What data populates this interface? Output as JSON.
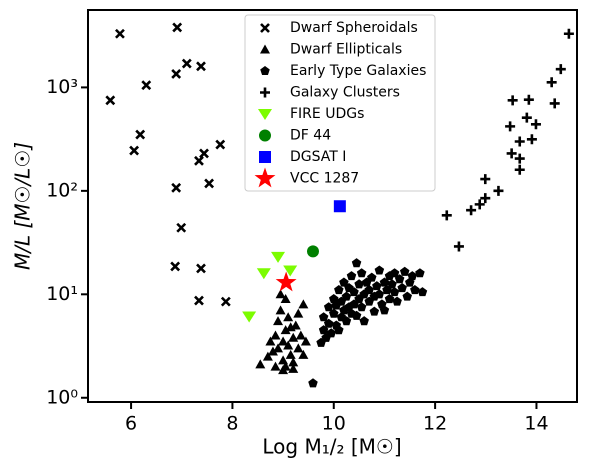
{
  "chart_data": {
    "type": "scatter",
    "x_label": "Log M₁/₂ [M☉]",
    "y_label": "M/L [M☉/L☉]",
    "xlim": [
      5.15,
      14.8
    ],
    "xticks": [
      6,
      8,
      10,
      12,
      14
    ],
    "ylim": [
      0.91,
      5600
    ],
    "y_scale": "log",
    "yticks": [
      {
        "value": 1,
        "label": "10⁰"
      },
      {
        "value": 10,
        "label": "10¹"
      },
      {
        "value": 100,
        "label": "10²"
      },
      {
        "value": 1000,
        "label": "10³"
      }
    ],
    "legend": "upper center",
    "series": [
      {
        "name": "Dwarf Spheroidals",
        "color": "#000000",
        "marker": "x",
        "x": [
          5.78,
          6.91,
          5.59,
          6.3,
          7.1,
          7.38,
          6.89,
          6.18,
          6.06,
          7.76,
          7.44,
          7.34,
          7.54,
          6.89,
          6.99,
          6.87,
          7.38,
          7.34,
          7.87
        ],
        "values": [
          3300,
          3800,
          750,
          1050,
          1700,
          1600,
          1350,
          350,
          245,
          280,
          230,
          195,
          118,
          107,
          44,
          18.6,
          17.8,
          8.7,
          8.5
        ]
      },
      {
        "name": "Dwarf Ellipticals",
        "color": "#000000",
        "marker": "^",
        "x": [
          8.55,
          8.7,
          8.75,
          8.8,
          8.85,
          8.9,
          8.9,
          8.95,
          9.0,
          9.0,
          9.05,
          9.05,
          9.1,
          9.1,
          9.15,
          9.15,
          9.2,
          9.2,
          9.25,
          9.3,
          9.3,
          9.35,
          9.4,
          9.4,
          8.95,
          9.05,
          9.2,
          8.85,
          9.45,
          9.0
        ],
        "values": [
          2.1,
          2.5,
          3.5,
          2.8,
          4.0,
          3.0,
          5.5,
          7.0,
          2.3,
          3.5,
          4.5,
          2.0,
          3.2,
          6.0,
          2.6,
          4.8,
          3.8,
          2.2,
          5.0,
          3.0,
          6.5,
          4.0,
          8.0,
          2.6,
          10.0,
          9.0,
          1.9,
          2.0,
          3.5,
          1.85
        ]
      },
      {
        "name": "Early Type Galaxies",
        "color": "#000000",
        "marker": "p",
        "x": [
          9.75,
          9.8,
          9.8,
          9.85,
          9.9,
          9.9,
          9.95,
          10.0,
          10.0,
          10.05,
          10.05,
          10.1,
          10.1,
          10.15,
          10.15,
          10.2,
          10.2,
          10.25,
          10.25,
          10.3,
          10.3,
          10.35,
          10.35,
          10.4,
          10.4,
          10.45,
          10.45,
          10.5,
          10.5,
          10.55,
          10.55,
          10.6,
          10.6,
          10.65,
          10.7,
          10.7,
          10.75,
          10.8,
          10.8,
          10.85,
          10.9,
          10.9,
          10.95,
          11.0,
          11.0,
          11.05,
          11.1,
          11.1,
          11.15,
          11.2,
          11.2,
          11.25,
          11.3,
          11.35,
          11.4,
          11.45,
          11.5,
          11.55,
          11.6,
          11.7,
          11.75,
          9.59
        ],
        "values": [
          3.4,
          4.5,
          6,
          3.8,
          5.2,
          7.5,
          4.2,
          6.5,
          9,
          5,
          7.8,
          4.5,
          11,
          6,
          8.5,
          7,
          13,
          5.5,
          9.5,
          7.5,
          11.5,
          6.5,
          15,
          8,
          10.5,
          20,
          6.2,
          9,
          12.5,
          7.5,
          16,
          10,
          5.5,
          13,
          8.5,
          11,
          14.5,
          9.5,
          6.8,
          12,
          17,
          10,
          8,
          13,
          7,
          11,
          15,
          9,
          12.5,
          16,
          10.5,
          8.5,
          14,
          11.5,
          16.5,
          9.5,
          13,
          15,
          11,
          16,
          10.5,
          1.38
        ]
      },
      {
        "name": "Galaxy Clusters",
        "color": "#000000",
        "marker": "+",
        "x": [
          14.64,
          14.48,
          14.3,
          14.36,
          13.53,
          13.85,
          13.81,
          13.99,
          13.48,
          13.67,
          13.91,
          13.51,
          13.67,
          13.67,
          12.99,
          13.25,
          12.99,
          12.88,
          12.71,
          12.23,
          12.47
        ],
        "values": [
          3300,
          1500,
          1120,
          700,
          750,
          760,
          510,
          440,
          420,
          300,
          315,
          230,
          205,
          160,
          130,
          100,
          85,
          74,
          65,
          58,
          29
        ]
      },
      {
        "name": "FIRE UDGs",
        "color": "#7cfc00",
        "marker": "v",
        "x": [
          8.33,
          8.62,
          8.9,
          9.14
        ],
        "values": [
          6.1,
          16,
          23,
          17
        ]
      },
      {
        "name": "DF 44",
        "color": "#008000",
        "marker": "o",
        "x": [
          9.59
        ],
        "values": [
          26
        ]
      },
      {
        "name": "DGSAT I",
        "color": "#0000ff",
        "marker": "s",
        "x": [
          10.12
        ],
        "values": [
          71
        ]
      },
      {
        "name": "VCC 1287",
        "color": "#ff0000",
        "marker": "*",
        "x": [
          9.06
        ],
        "values": [
          13
        ]
      }
    ]
  }
}
